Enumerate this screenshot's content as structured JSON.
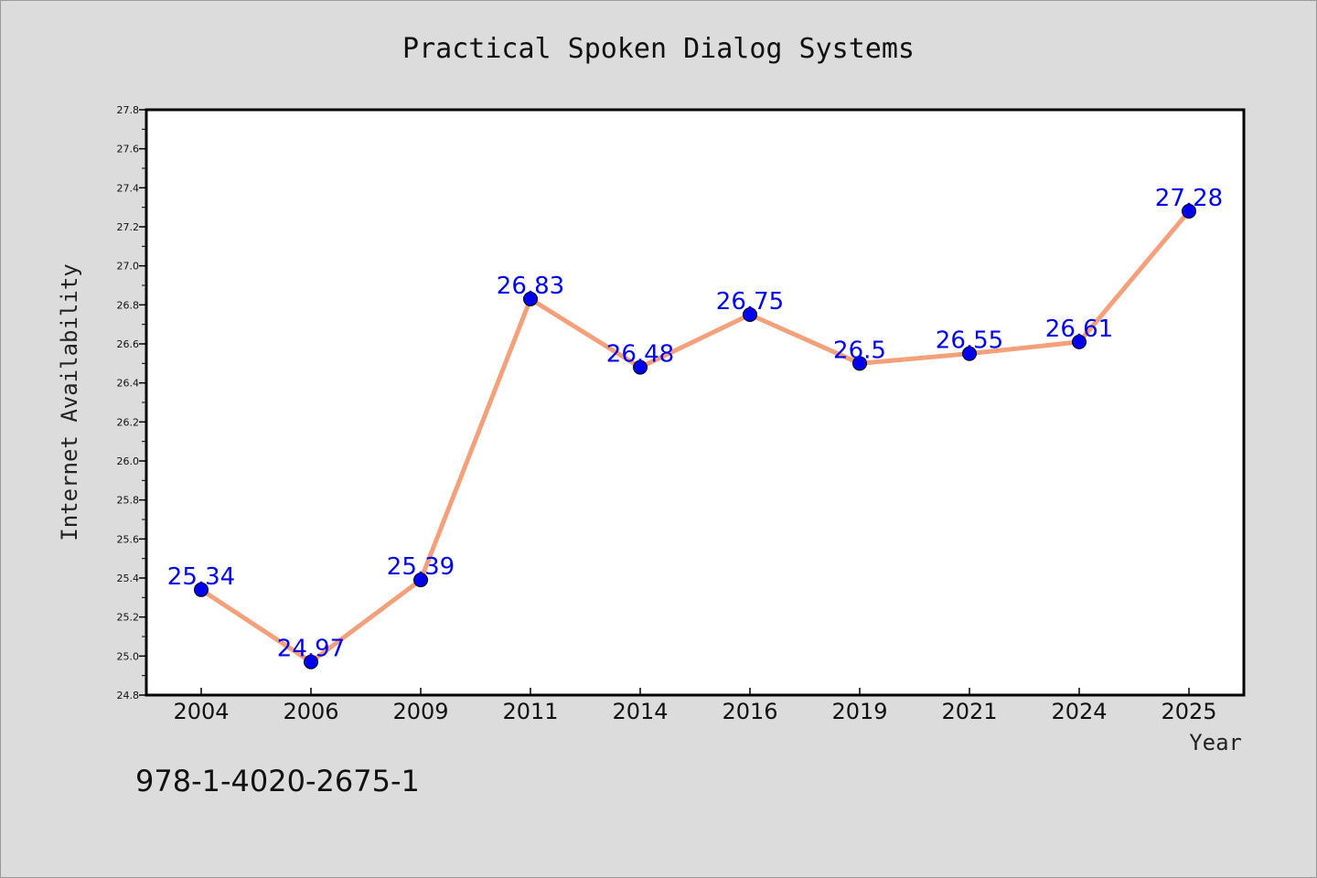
{
  "chart_data": {
    "type": "line",
    "title": "Practical Spoken Dialog Systems",
    "xlabel": "Year",
    "ylabel": "Internet Availability",
    "categories": [
      "2004",
      "2006",
      "2009",
      "2011",
      "2014",
      "2016",
      "2019",
      "2021",
      "2024",
      "2025"
    ],
    "values": [
      25.34,
      24.97,
      25.39,
      26.83,
      26.48,
      26.75,
      26.5,
      26.55,
      26.61,
      27.28
    ],
    "value_labels": [
      "25.34",
      "24.97",
      "25.39",
      "26.83",
      "26.48",
      "26.75",
      "26.5",
      "26.55",
      "26.61",
      "27.28"
    ],
    "ylim": [
      24.8,
      27.8
    ],
    "yticks": [
      "24.8",
      "25.0",
      "25.2",
      "25.4",
      "25.6",
      "25.8",
      "26.0",
      "26.2",
      "26.4",
      "26.6",
      "26.8",
      "27.0",
      "27.2",
      "27.4",
      "27.6",
      "27.8"
    ],
    "grid": false,
    "legend": "none",
    "line_color": "#f4a07a",
    "marker_color": "#0000ee",
    "label_color": "#0000ee"
  },
  "footer": {
    "isbn": "978-1-4020-2675-1"
  }
}
